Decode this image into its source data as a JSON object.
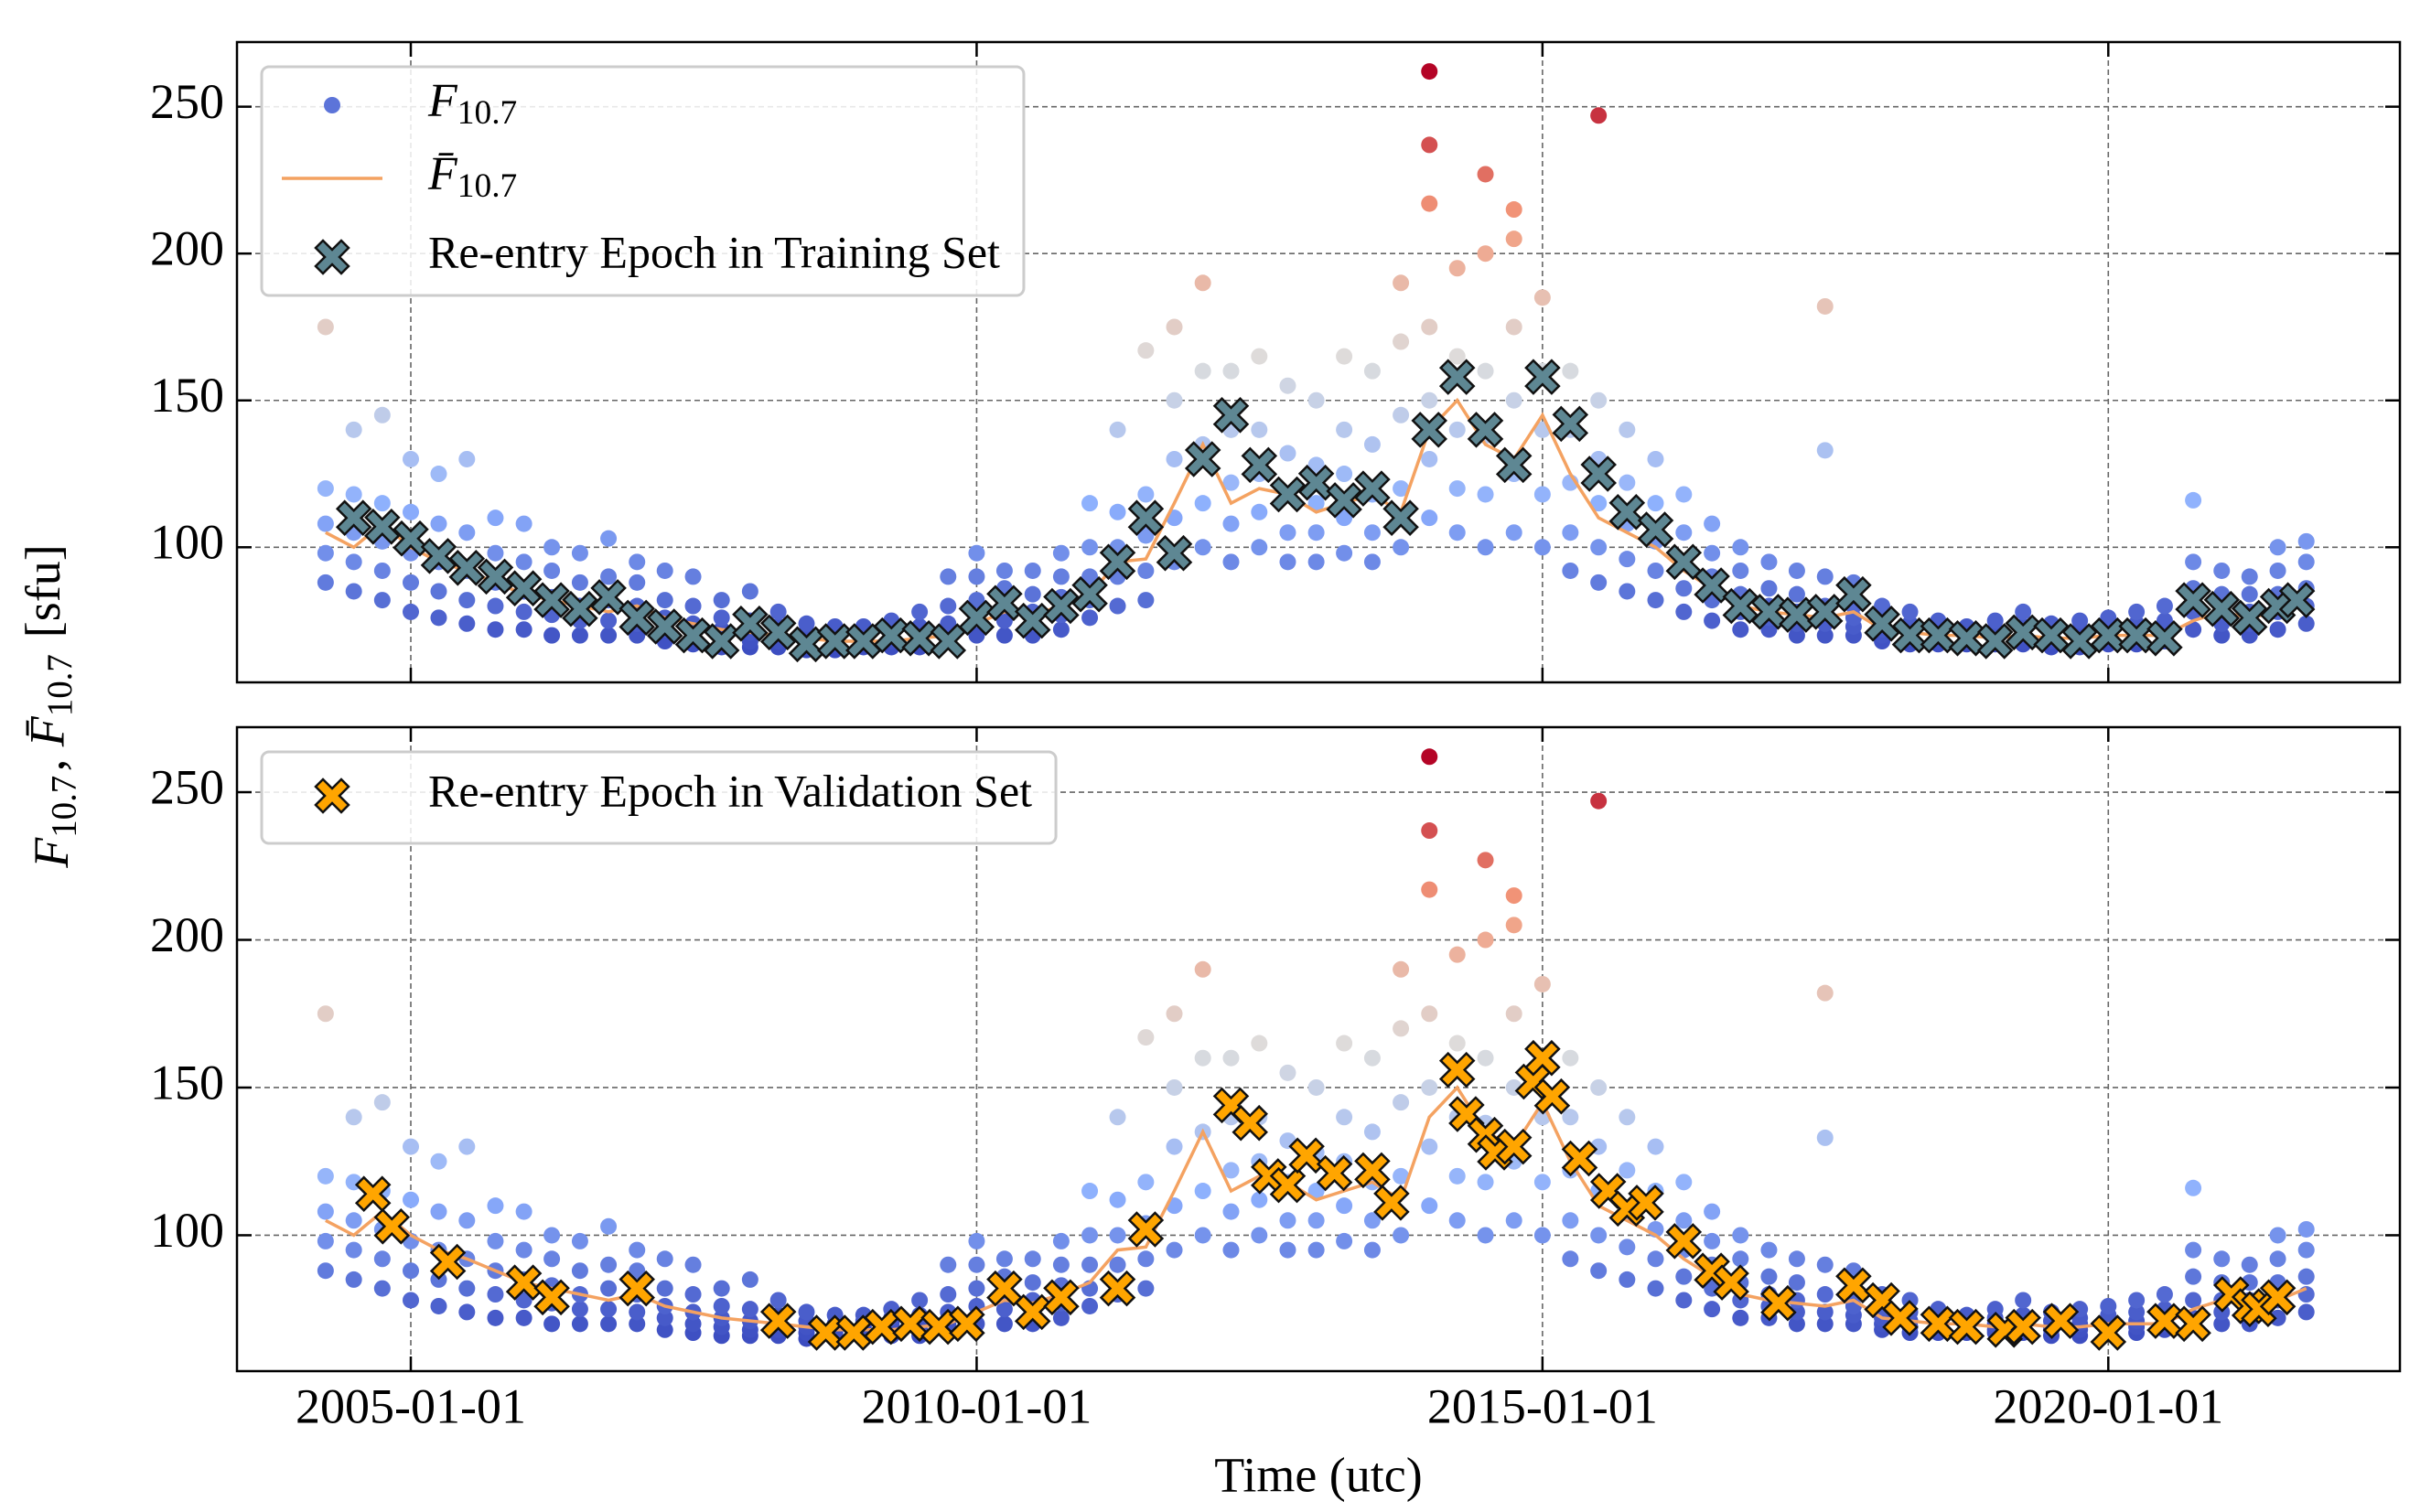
{
  "chart_data": {
    "type": "scatter",
    "ylabel": "F10.7, F̄10.7 [sfu]",
    "xlabel": "Time (utc)",
    "xlim": [
      "2003-06-20",
      "2022-07-30"
    ],
    "xticks": [
      "2005-01-01",
      "2010-01-01",
      "2015-01-01",
      "2020-01-01"
    ],
    "ylim": [
      54,
      272
    ],
    "yticks": [
      100,
      150,
      200,
      250
    ],
    "grid": true,
    "flux": {
      "name": "F10.7",
      "colormap": "coolwarm",
      "x": [
        "2004-04-01",
        "2004-07-01",
        "2004-10-01",
        "2005-01-01",
        "2005-04-01",
        "2005-07-01",
        "2005-10-01",
        "2006-01-01",
        "2006-04-01",
        "2006-07-01",
        "2006-10-01",
        "2007-01-01",
        "2007-04-01",
        "2007-07-01",
        "2007-10-01",
        "2008-01-01",
        "2008-04-01",
        "2008-07-01",
        "2008-10-01",
        "2009-01-01",
        "2009-04-01",
        "2009-07-01",
        "2009-10-01",
        "2010-01-01",
        "2010-04-01",
        "2010-07-01",
        "2010-10-01",
        "2011-01-01",
        "2011-04-01",
        "2011-07-01",
        "2011-10-01",
        "2012-01-01",
        "2012-04-01",
        "2012-07-01",
        "2012-10-01",
        "2013-01-01",
        "2013-04-01",
        "2013-07-01",
        "2013-10-01",
        "2014-01-01",
        "2014-04-01",
        "2014-07-01",
        "2014-10-01",
        "2015-01-01",
        "2015-04-01",
        "2015-07-01",
        "2015-10-01",
        "2016-01-01",
        "2016-04-01",
        "2016-07-01",
        "2016-10-01",
        "2017-01-01",
        "2017-04-01",
        "2017-07-01",
        "2017-10-01",
        "2018-01-01",
        "2018-04-01",
        "2018-07-01",
        "2018-10-01",
        "2019-01-01",
        "2019-04-01",
        "2019-07-01",
        "2019-10-01",
        "2020-01-01",
        "2020-04-01",
        "2020-07-01",
        "2020-10-01",
        "2021-01-01",
        "2021-04-01",
        "2021-07-01",
        "2021-10-01"
      ],
      "values": [
        [
          88,
          98,
          108,
          120,
          175
        ],
        [
          85,
          95,
          105,
          118,
          140
        ],
        [
          82,
          92,
          102,
          115,
          145
        ],
        [
          78,
          88,
          98,
          112,
          130
        ],
        [
          76,
          85,
          95,
          108,
          125
        ],
        [
          74,
          82,
          92,
          105,
          130
        ],
        [
          72,
          80,
          88,
          98,
          110
        ],
        [
          72,
          78,
          85,
          95,
          108
        ],
        [
          70,
          77,
          83,
          92,
          100
        ],
        [
          70,
          75,
          80,
          88,
          98
        ],
        [
          70,
          75,
          82,
          90,
          103
        ],
        [
          70,
          74,
          80,
          88,
          95
        ],
        [
          68,
          72,
          76,
          82,
          92
        ],
        [
          67,
          70,
          74,
          80,
          90
        ],
        [
          66,
          69,
          72,
          76,
          82
        ],
        [
          66,
          68,
          71,
          75,
          85
        ],
        [
          66,
          68,
          70,
          73,
          78
        ],
        [
          65,
          67,
          69,
          71,
          74
        ],
        [
          65,
          67,
          68,
          70,
          73
        ],
        [
          66,
          67,
          69,
          71,
          73
        ],
        [
          66,
          68,
          70,
          72,
          75
        ],
        [
          66,
          68,
          70,
          73,
          78
        ],
        [
          68,
          70,
          74,
          80,
          90
        ],
        [
          70,
          76,
          82,
          90,
          98
        ],
        [
          70,
          75,
          80,
          86,
          92
        ],
        [
          70,
          74,
          78,
          84,
          92
        ],
        [
          72,
          77,
          83,
          90,
          98
        ],
        [
          76,
          82,
          90,
          100,
          115
        ],
        [
          80,
          90,
          100,
          112,
          140
        ],
        [
          82,
          92,
          104,
          118,
          167
        ],
        [
          95,
          110,
          130,
          150,
          175
        ],
        [
          100,
          115,
          135,
          160,
          190
        ],
        [
          95,
          108,
          122,
          140,
          160
        ],
        [
          100,
          112,
          125,
          140,
          165
        ],
        [
          95,
          105,
          118,
          132,
          155
        ],
        [
          95,
          105,
          115,
          128,
          150
        ],
        [
          98,
          110,
          125,
          140,
          165
        ],
        [
          95,
          105,
          118,
          135,
          160
        ],
        [
          100,
          120,
          145,
          170,
          190
        ],
        [
          110,
          130,
          150,
          175,
          262,
          237,
          217
        ],
        [
          105,
          120,
          140,
          165,
          195
        ],
        [
          100,
          118,
          138,
          160,
          200,
          227
        ],
        [
          105,
          125,
          150,
          175,
          215,
          205
        ],
        [
          100,
          118,
          140,
          160,
          185
        ],
        [
          92,
          105,
          122,
          140,
          160
        ],
        [
          88,
          100,
          115,
          130,
          150,
          247
        ],
        [
          85,
          96,
          108,
          122,
          140
        ],
        [
          82,
          92,
          102,
          115,
          130
        ],
        [
          78,
          86,
          95,
          105,
          118
        ],
        [
          75,
          82,
          90,
          98,
          108
        ],
        [
          72,
          78,
          84,
          92,
          100
        ],
        [
          72,
          76,
          80,
          86,
          95
        ],
        [
          70,
          74,
          78,
          84,
          92
        ],
        [
          70,
          74,
          80,
          90,
          133,
          182
        ],
        [
          70,
          73,
          76,
          80,
          88
        ],
        [
          68,
          70,
          72,
          75,
          80
        ],
        [
          67,
          69,
          71,
          74,
          78
        ],
        [
          67,
          68,
          70,
          72,
          75
        ],
        [
          67,
          68,
          70,
          71,
          73
        ],
        [
          67,
          68,
          70,
          72,
          75
        ],
        [
          67,
          68,
          70,
          73,
          78
        ],
        [
          66,
          68,
          69,
          71,
          74
        ],
        [
          66,
          68,
          70,
          72,
          75
        ],
        [
          67,
          69,
          71,
          73,
          76
        ],
        [
          67,
          69,
          71,
          74,
          78
        ],
        [
          68,
          70,
          72,
          75,
          80
        ],
        [
          72,
          78,
          86,
          95,
          116
        ],
        [
          70,
          74,
          78,
          84,
          92
        ],
        [
          70,
          74,
          78,
          84,
          90
        ],
        [
          72,
          78,
          84,
          92,
          100
        ],
        [
          74,
          80,
          86,
          95,
          102
        ]
      ]
    },
    "mean": {
      "name": "F̄10.7",
      "color": "#f4a261",
      "x": [
        "2004-04-01",
        "2004-07-01",
        "2004-10-01",
        "2005-01-01",
        "2005-04-01",
        "2005-07-01",
        "2005-10-01",
        "2006-01-01",
        "2006-04-01",
        "2006-07-01",
        "2006-10-01",
        "2007-01-01",
        "2007-04-01",
        "2007-07-01",
        "2007-10-01",
        "2008-01-01",
        "2008-04-01",
        "2008-07-01",
        "2008-10-01",
        "2009-01-01",
        "2009-04-01",
        "2009-07-01",
        "2009-10-01",
        "2010-01-01",
        "2010-04-01",
        "2010-07-01",
        "2010-10-01",
        "2011-01-01",
        "2011-04-01",
        "2011-07-01",
        "2011-10-01",
        "2012-01-01",
        "2012-04-01",
        "2012-07-01",
        "2012-10-01",
        "2013-01-01",
        "2013-04-01",
        "2013-07-01",
        "2013-10-01",
        "2014-01-01",
        "2014-04-01",
        "2014-07-01",
        "2014-10-01",
        "2015-01-01",
        "2015-04-01",
        "2015-07-01",
        "2015-10-01",
        "2016-01-01",
        "2016-04-01",
        "2016-07-01",
        "2016-10-01",
        "2017-01-01",
        "2017-04-01",
        "2017-07-01",
        "2017-10-01",
        "2018-01-01",
        "2018-04-01",
        "2018-07-01",
        "2018-10-01",
        "2019-01-01",
        "2019-04-01",
        "2019-07-01",
        "2019-10-01",
        "2020-01-01",
        "2020-04-01",
        "2020-07-01",
        "2020-10-01",
        "2021-01-01",
        "2021-04-01",
        "2021-07-01",
        "2021-10-01"
      ],
      "values": [
        105,
        100,
        108,
        100,
        95,
        92,
        88,
        84,
        82,
        80,
        78,
        80,
        76,
        74,
        72,
        71,
        70,
        69,
        68,
        68,
        68,
        69,
        70,
        74,
        78,
        77,
        80,
        84,
        95,
        96,
        115,
        135,
        115,
        120,
        118,
        112,
        115,
        118,
        112,
        140,
        150,
        135,
        130,
        145,
        125,
        110,
        105,
        100,
        92,
        86,
        80,
        78,
        77,
        76,
        78,
        72,
        71,
        70,
        70,
        69,
        70,
        69,
        69,
        70,
        70,
        70,
        75,
        78,
        76,
        78,
        82
      ]
    },
    "panels": [
      {
        "legend_loc": "upper left",
        "legend_includes_flux": true,
        "series": [
          {
            "name": "Re-entry Epoch in Training Set",
            "color": "#5e8793",
            "marker": "X",
            "x": [
              "2004-07-01",
              "2004-10-01",
              "2005-01-01",
              "2005-04-01",
              "2005-07-01",
              "2005-10-01",
              "2006-01-01",
              "2006-04-01",
              "2006-07-01",
              "2006-10-01",
              "2007-01-01",
              "2007-04-01",
              "2007-07-01",
              "2007-10-01",
              "2008-01-01",
              "2008-04-01",
              "2008-07-01",
              "2008-10-01",
              "2009-01-01",
              "2009-04-01",
              "2009-07-01",
              "2009-10-01",
              "2010-01-01",
              "2010-04-01",
              "2010-07-01",
              "2010-10-01",
              "2011-01-01",
              "2011-04-01",
              "2011-07-01",
              "2011-10-01",
              "2012-01-01",
              "2012-04-01",
              "2012-07-01",
              "2012-10-01",
              "2013-01-01",
              "2013-04-01",
              "2013-07-01",
              "2013-10-01",
              "2014-01-01",
              "2014-04-01",
              "2014-07-01",
              "2014-10-01",
              "2015-01-01",
              "2015-04-01",
              "2015-07-01",
              "2015-10-01",
              "2016-01-01",
              "2016-04-01",
              "2016-07-01",
              "2016-10-01",
              "2017-01-01",
              "2017-04-01",
              "2017-07-01",
              "2017-10-01",
              "2018-01-01",
              "2018-04-01",
              "2018-07-01",
              "2018-10-01",
              "2019-01-01",
              "2019-04-01",
              "2019-07-01",
              "2019-10-01",
              "2020-01-01",
              "2020-04-01",
              "2020-07-01",
              "2020-10-01",
              "2021-01-01",
              "2021-04-01",
              "2021-07-01",
              "2021-09-01"
            ],
            "values": [
              110,
              107,
              103,
              97,
              93,
              90,
              86,
              82,
              79,
              83,
              76,
              73,
              70,
              68,
              74,
              71,
              67,
              68,
              68,
              70,
              69,
              68,
              76,
              81,
              75,
              80,
              84,
              95,
              110,
              98,
              130,
              145,
              128,
              118,
              122,
              116,
              120,
              110,
              140,
              158,
              140,
              128,
              158,
              142,
              125,
              112,
              106,
              95,
              87,
              80,
              78,
              77,
              78,
              84,
              74,
              70,
              70,
              69,
              68,
              71,
              70,
              68,
              70,
              70,
              69,
              82,
              79,
              76,
              80,
              82
            ]
          }
        ]
      },
      {
        "legend_loc": "upper left",
        "series": [
          {
            "name": "Re-entry Epoch in Validation Set",
            "color": "#ffa500",
            "marker": "X",
            "x": [
              "2004-09-01",
              "2004-11-01",
              "2005-05-01",
              "2006-01-01",
              "2006-04-01",
              "2007-01-01",
              "2008-04-01",
              "2008-09-01",
              "2008-12-01",
              "2009-03-01",
              "2009-06-01",
              "2009-09-01",
              "2009-12-01",
              "2010-04-01",
              "2010-07-01",
              "2010-10-01",
              "2011-04-01",
              "2011-07-01",
              "2012-04-01",
              "2012-06-01",
              "2012-08-01",
              "2012-10-01",
              "2012-12-01",
              "2013-03-01",
              "2013-07-01",
              "2013-09-01",
              "2014-04-01",
              "2014-05-01",
              "2014-07-01",
              "2014-08-01",
              "2014-10-01",
              "2014-12-01",
              "2015-01-01",
              "2015-02-01",
              "2015-05-01",
              "2015-08-01",
              "2015-10-01",
              "2015-12-01",
              "2016-04-01",
              "2016-07-01",
              "2016-09-01",
              "2017-02-01",
              "2017-10-01",
              "2018-01-01",
              "2018-03-01",
              "2018-07-01",
              "2018-10-01",
              "2019-02-01",
              "2019-04-01",
              "2019-08-01",
              "2020-01-01",
              "2020-07-01",
              "2020-10-01",
              "2021-02-01",
              "2021-04-01",
              "2021-05-01",
              "2021-07-01"
            ],
            "values": [
              114,
              103,
              91,
              84,
              79,
              82,
              71,
              67,
              67,
              69,
              70,
              69,
              70,
              82,
              74,
              79,
              82,
              102,
              144,
              138,
              120,
              117,
              127,
              121,
              122,
              111,
              156,
              141,
              134,
              128,
              130,
              152,
              160,
              147,
              126,
              115,
              109,
              111,
              98,
              88,
              84,
              77,
              83,
              78,
              72,
              70,
              69,
              68,
              69,
              71,
              67,
              71,
              70,
              80,
              76,
              75,
              79
            ]
          }
        ]
      }
    ]
  }
}
